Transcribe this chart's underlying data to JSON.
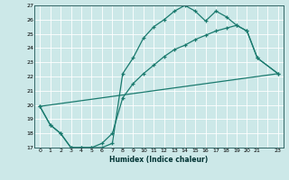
{
  "xlabel": "Humidex (Indice chaleur)",
  "background_color": "#cce8e8",
  "grid_color": "#ffffff",
  "line_color": "#1a7a6e",
  "xlim": [
    -0.5,
    23.5
  ],
  "ylim": [
    17,
    27
  ],
  "line1_x": [
    0,
    1,
    2,
    3,
    4,
    5,
    6,
    7,
    8,
    9,
    10,
    11,
    12,
    13,
    14,
    15,
    16,
    17,
    18,
    19,
    20,
    21,
    23
  ],
  "line1_y": [
    19.9,
    18.6,
    18.0,
    17.0,
    17.0,
    17.0,
    17.0,
    17.3,
    22.2,
    23.3,
    24.7,
    25.5,
    26.0,
    26.6,
    27.0,
    26.6,
    25.9,
    26.6,
    26.2,
    25.6,
    25.2,
    23.3,
    22.2
  ],
  "line2_x": [
    0,
    1,
    2,
    3,
    4,
    5,
    6,
    7,
    8,
    9,
    10,
    11,
    12,
    13,
    14,
    15,
    16,
    17,
    18,
    19,
    20,
    21,
    23
  ],
  "line2_y": [
    19.9,
    18.6,
    18.0,
    17.0,
    17.0,
    17.0,
    17.3,
    18.0,
    20.5,
    21.5,
    22.2,
    22.8,
    23.4,
    23.9,
    24.2,
    24.6,
    24.9,
    25.2,
    25.4,
    25.6,
    25.2,
    23.3,
    22.2
  ],
  "line3_x": [
    0,
    23
  ],
  "line3_y": [
    19.9,
    22.2
  ],
  "yticks": [
    17,
    18,
    19,
    20,
    21,
    22,
    23,
    24,
    25,
    26,
    27
  ],
  "xtick_labels": [
    "0",
    "1",
    "2",
    "3",
    "4",
    "5",
    "6",
    "7",
    "8",
    "9",
    "10",
    "11",
    "12",
    "13",
    "14",
    "15",
    "16",
    "17",
    "18",
    "19",
    "20",
    "21",
    "",
    "23"
  ]
}
